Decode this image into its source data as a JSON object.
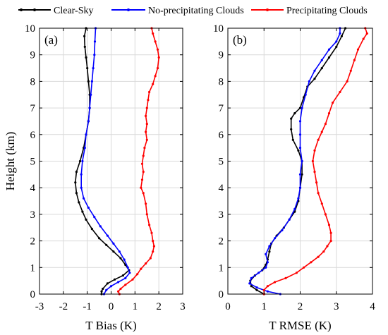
{
  "legend": {
    "entries": [
      {
        "label": "Clear-Sky",
        "color": "#000000"
      },
      {
        "label": "No-precipitating Clouds",
        "color": "#0000ff"
      },
      {
        "label": "Precipitating Clouds",
        "color": "#ff0000"
      }
    ],
    "placement": "top (outside plots)",
    "marker": "dot-on-line"
  },
  "chart_data": [
    {
      "type": "line",
      "panel_label": "(a)",
      "xlabel": "T Bias (K)",
      "ylabel": "Height (km)",
      "xlim": [
        -3,
        3
      ],
      "ylim": [
        0,
        10
      ],
      "xticks": [
        -3,
        -2,
        -1,
        0,
        1,
        2,
        3
      ],
      "yticks": [
        0,
        1,
        2,
        3,
        4,
        5,
        6,
        7,
        8,
        9,
        10
      ],
      "grid": true,
      "series": [
        {
          "name": "Clear-Sky",
          "color": "#000000",
          "points": [
            [
              -0.4,
              0.0
            ],
            [
              -0.4,
              0.1
            ],
            [
              -0.35,
              0.2
            ],
            [
              -0.15,
              0.4
            ],
            [
              0.15,
              0.55
            ],
            [
              0.5,
              0.7
            ],
            [
              0.75,
              0.9
            ],
            [
              0.6,
              1.1
            ],
            [
              0.4,
              1.35
            ],
            [
              0.1,
              1.6
            ],
            [
              -0.2,
              1.85
            ],
            [
              -0.5,
              2.1
            ],
            [
              -0.8,
              2.45
            ],
            [
              -1.05,
              2.8
            ],
            [
              -1.2,
              3.1
            ],
            [
              -1.35,
              3.45
            ],
            [
              -1.45,
              3.8
            ],
            [
              -1.5,
              4.2
            ],
            [
              -1.45,
              4.6
            ],
            [
              -1.3,
              5.0
            ],
            [
              -1.15,
              5.5
            ],
            [
              -1.05,
              6.0
            ],
            [
              -0.95,
              6.5
            ],
            [
              -0.9,
              7.0
            ],
            [
              -0.9,
              7.5
            ],
            [
              -0.95,
              8.0
            ],
            [
              -1.0,
              8.5
            ],
            [
              -1.05,
              8.9
            ],
            [
              -1.1,
              9.3
            ],
            [
              -1.12,
              9.7
            ],
            [
              -1.05,
              10.0
            ]
          ]
        },
        {
          "name": "No-precipitating Clouds",
          "color": "#0000ff",
          "points": [
            [
              -0.3,
              0.0
            ],
            [
              -0.2,
              0.15
            ],
            [
              0.0,
              0.3
            ],
            [
              0.3,
              0.45
            ],
            [
              0.6,
              0.6
            ],
            [
              0.78,
              0.8
            ],
            [
              0.7,
              1.0
            ],
            [
              0.55,
              1.3
            ],
            [
              0.35,
              1.6
            ],
            [
              0.1,
              1.9
            ],
            [
              -0.15,
              2.2
            ],
            [
              -0.45,
              2.55
            ],
            [
              -0.7,
              2.9
            ],
            [
              -0.95,
              3.25
            ],
            [
              -1.15,
              3.6
            ],
            [
              -1.25,
              4.0
            ],
            [
              -1.25,
              4.5
            ],
            [
              -1.2,
              5.0
            ],
            [
              -1.1,
              5.5
            ],
            [
              -1.05,
              6.0
            ],
            [
              -0.95,
              6.5
            ],
            [
              -0.9,
              7.0
            ],
            [
              -0.85,
              7.5
            ],
            [
              -0.8,
              8.0
            ],
            [
              -0.75,
              8.5
            ],
            [
              -0.7,
              9.0
            ],
            [
              -0.68,
              9.5
            ],
            [
              -0.65,
              10.0
            ]
          ]
        },
        {
          "name": "Precipitating Clouds",
          "color": "#ff0000",
          "points": [
            [
              0.35,
              0.0
            ],
            [
              0.3,
              0.1
            ],
            [
              0.4,
              0.2
            ],
            [
              0.6,
              0.35
            ],
            [
              0.9,
              0.55
            ],
            [
              1.1,
              0.75
            ],
            [
              1.25,
              0.95
            ],
            [
              1.45,
              1.15
            ],
            [
              1.65,
              1.35
            ],
            [
              1.75,
              1.6
            ],
            [
              1.8,
              1.8
            ],
            [
              1.75,
              2.0
            ],
            [
              1.7,
              2.3
            ],
            [
              1.6,
              2.6
            ],
            [
              1.5,
              3.0
            ],
            [
              1.45,
              3.4
            ],
            [
              1.35,
              3.8
            ],
            [
              1.25,
              4.0
            ],
            [
              1.3,
              4.3
            ],
            [
              1.35,
              4.6
            ],
            [
              1.3,
              4.9
            ],
            [
              1.35,
              5.2
            ],
            [
              1.4,
              5.5
            ],
            [
              1.5,
              5.8
            ],
            [
              1.45,
              6.1
            ],
            [
              1.5,
              6.4
            ],
            [
              1.45,
              6.7
            ],
            [
              1.5,
              7.0
            ],
            [
              1.55,
              7.3
            ],
            [
              1.6,
              7.6
            ],
            [
              1.75,
              7.9
            ],
            [
              1.85,
              8.2
            ],
            [
              1.95,
              8.5
            ],
            [
              2.0,
              8.9
            ],
            [
              1.95,
              9.2
            ],
            [
              1.85,
              9.5
            ],
            [
              1.75,
              9.8
            ],
            [
              1.7,
              10.0
            ]
          ]
        }
      ]
    },
    {
      "type": "line",
      "panel_label": "(b)",
      "xlabel": "T RMSE (K)",
      "ylabel": "",
      "xlim": [
        0,
        4
      ],
      "ylim": [
        0,
        10
      ],
      "xticks": [
        0,
        1,
        2,
        3,
        4
      ],
      "yticks": [
        0,
        1,
        2,
        3,
        4,
        5,
        6,
        7,
        8,
        9,
        10
      ],
      "grid": true,
      "series": [
        {
          "name": "Clear-Sky",
          "color": "#000000",
          "points": [
            [
              1.0,
              0.0
            ],
            [
              0.8,
              0.15
            ],
            [
              0.65,
              0.3
            ],
            [
              0.62,
              0.5
            ],
            [
              0.75,
              0.7
            ],
            [
              0.95,
              0.9
            ],
            [
              1.05,
              1.1
            ],
            [
              1.1,
              1.3
            ],
            [
              1.15,
              1.6
            ],
            [
              1.2,
              1.9
            ],
            [
              1.35,
              2.2
            ],
            [
              1.55,
              2.5
            ],
            [
              1.7,
              2.8
            ],
            [
              1.85,
              3.1
            ],
            [
              1.95,
              3.5
            ],
            [
              2.0,
              4.0
            ],
            [
              2.05,
              4.5
            ],
            [
              2.05,
              5.0
            ],
            [
              1.95,
              5.4
            ],
            [
              1.8,
              5.8
            ],
            [
              1.75,
              6.2
            ],
            [
              1.75,
              6.6
            ],
            [
              1.85,
              6.8
            ],
            [
              2.0,
              7.0
            ],
            [
              2.1,
              7.4
            ],
            [
              2.2,
              7.8
            ],
            [
              2.4,
              8.1
            ],
            [
              2.6,
              8.5
            ],
            [
              2.8,
              8.9
            ],
            [
              3.0,
              9.3
            ],
            [
              3.15,
              9.7
            ],
            [
              3.25,
              10.0
            ]
          ]
        },
        {
          "name": "No-precipitating Clouds",
          "color": "#0000ff",
          "points": [
            [
              1.45,
              0.0
            ],
            [
              1.1,
              0.1
            ],
            [
              0.8,
              0.25
            ],
            [
              0.6,
              0.4
            ],
            [
              0.65,
              0.6
            ],
            [
              0.85,
              0.8
            ],
            [
              1.05,
              1.0
            ],
            [
              1.1,
              1.2
            ],
            [
              1.05,
              1.5
            ],
            [
              1.15,
              1.8
            ],
            [
              1.3,
              2.1
            ],
            [
              1.5,
              2.4
            ],
            [
              1.7,
              2.8
            ],
            [
              1.85,
              3.2
            ],
            [
              1.95,
              3.6
            ],
            [
              2.0,
              4.0
            ],
            [
              2.0,
              4.5
            ],
            [
              2.05,
              5.0
            ],
            [
              2.0,
              5.5
            ],
            [
              2.0,
              6.0
            ],
            [
              2.0,
              6.5
            ],
            [
              2.05,
              7.0
            ],
            [
              2.15,
              7.5
            ],
            [
              2.25,
              8.0
            ],
            [
              2.4,
              8.4
            ],
            [
              2.6,
              8.8
            ],
            [
              2.8,
              9.2
            ],
            [
              3.0,
              9.5
            ],
            [
              3.1,
              9.8
            ],
            [
              3.1,
              10.0
            ]
          ]
        },
        {
          "name": "Precipitating Clouds",
          "color": "#ff0000",
          "points": [
            [
              1.0,
              0.0
            ],
            [
              1.0,
              0.15
            ],
            [
              1.1,
              0.3
            ],
            [
              1.3,
              0.45
            ],
            [
              1.6,
              0.6
            ],
            [
              1.9,
              0.8
            ],
            [
              2.1,
              1.0
            ],
            [
              2.3,
              1.2
            ],
            [
              2.5,
              1.4
            ],
            [
              2.65,
              1.6
            ],
            [
              2.75,
              1.8
            ],
            [
              2.85,
              2.0
            ],
            [
              2.85,
              2.3
            ],
            [
              2.8,
              2.6
            ],
            [
              2.7,
              3.0
            ],
            [
              2.6,
              3.4
            ],
            [
              2.5,
              3.8
            ],
            [
              2.45,
              4.2
            ],
            [
              2.4,
              4.6
            ],
            [
              2.35,
              5.0
            ],
            [
              2.4,
              5.4
            ],
            [
              2.5,
              5.8
            ],
            [
              2.6,
              6.1
            ],
            [
              2.7,
              6.4
            ],
            [
              2.8,
              6.8
            ],
            [
              2.9,
              7.2
            ],
            [
              3.1,
              7.6
            ],
            [
              3.3,
              8.0
            ],
            [
              3.4,
              8.4
            ],
            [
              3.5,
              8.8
            ],
            [
              3.6,
              9.2
            ],
            [
              3.75,
              9.6
            ],
            [
              3.85,
              9.8
            ],
            [
              3.8,
              10.0
            ]
          ]
        }
      ]
    }
  ]
}
